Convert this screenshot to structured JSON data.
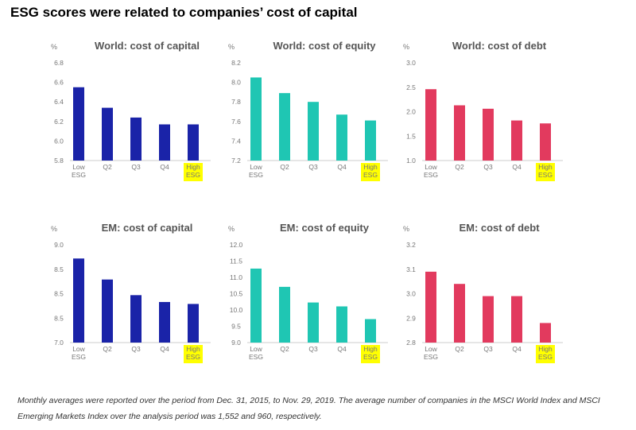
{
  "page_title": "ESG scores were related to companies’ cost of capital",
  "footnote": "Monthly averages were reported over the period from Dec. 31, 2015, to Nov. 29, 2019. The average number of companies in the MSCI World Index and MSCI Emerging Markets Index over the analysis period was 1,552 and 960, respectively.",
  "colors": {
    "capital": "#1a23a8",
    "equity": "#1fc6b3",
    "debt": "#e23a5e",
    "highlight": "#ffff00"
  },
  "chart_data": [
    {
      "type": "bar",
      "title": "World: cost of capital",
      "unit": "%",
      "color_key": "capital",
      "categories": [
        "Low ESG",
        "Q2",
        "Q3",
        "Q4",
        "High ESG"
      ],
      "highlight": "High ESG",
      "values": [
        6.55,
        6.34,
        6.24,
        6.17,
        6.17
      ],
      "ylim": [
        5.8,
        6.8
      ],
      "yticks": [
        "5.8",
        "6.0",
        "6.2",
        "6.4",
        "6.6",
        "6.8"
      ]
    },
    {
      "type": "bar",
      "title": "World: cost of equity",
      "unit": "%",
      "color_key": "equity",
      "categories": [
        "Low ESG",
        "Q2",
        "Q3",
        "Q4",
        "High ESG"
      ],
      "highlight": "High ESG",
      "values": [
        8.05,
        7.89,
        7.8,
        7.67,
        7.61
      ],
      "ylim": [
        7.2,
        8.2
      ],
      "yticks": [
        "7.2",
        "7.4",
        "7.6",
        "7.8",
        "8.0",
        "8.2"
      ]
    },
    {
      "type": "bar",
      "title": "World: cost of debt",
      "unit": "%",
      "color_key": "debt",
      "categories": [
        "Low ESG",
        "Q2",
        "Q3",
        "Q4",
        "High ESG"
      ],
      "highlight": "High ESG",
      "values": [
        2.46,
        2.13,
        2.06,
        1.82,
        1.76
      ],
      "ylim": [
        1.0,
        3.0
      ],
      "yticks": [
        "1.0",
        "1.5",
        "2.0",
        "2.5",
        "3.0"
      ]
    },
    {
      "type": "bar",
      "title": "EM: cost of capital",
      "unit": "%",
      "color_key": "capital",
      "categories": [
        "Low ESG",
        "Q2",
        "Q3",
        "Q4",
        "High ESG"
      ],
      "highlight": "High ESG",
      "values": [
        8.72,
        8.29,
        7.97,
        7.83,
        7.79
      ],
      "ylim": [
        7.0,
        9.0
      ],
      "yticks": [
        "7.0",
        "8.5",
        "8.5",
        "8.5",
        "9.0"
      ]
    },
    {
      "type": "bar",
      "title": "EM: cost of equity",
      "unit": "%",
      "color_key": "equity",
      "categories": [
        "Low ESG",
        "Q2",
        "Q3",
        "Q4",
        "High ESG"
      ],
      "highlight": "High ESG",
      "values": [
        11.27,
        10.71,
        10.23,
        10.11,
        9.72
      ],
      "ylim": [
        9.0,
        12.0
      ],
      "yticks": [
        "9.0",
        "9.5",
        "10.0",
        "10.5",
        "11.0",
        "11.5",
        "12.0"
      ]
    },
    {
      "type": "bar",
      "title": "EM: cost of debt",
      "unit": "%",
      "color_key": "debt",
      "categories": [
        "Low ESG",
        "Q2",
        "Q3",
        "Q4",
        "High ESG"
      ],
      "highlight": "High ESG",
      "values": [
        3.09,
        3.04,
        2.99,
        2.99,
        2.88
      ],
      "ylim": [
        2.8,
        3.2
      ],
      "yticks": [
        "2.8",
        "2.9",
        "3.0",
        "3.1",
        "3.2"
      ]
    }
  ]
}
